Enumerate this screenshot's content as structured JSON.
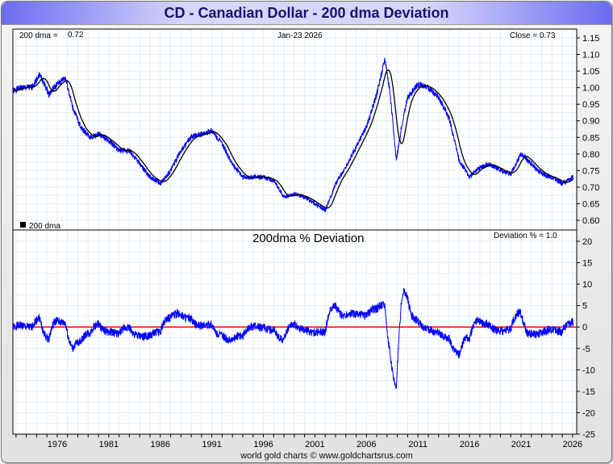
{
  "title": "CD  -  Canadian Dollar - 200 dma Deviation",
  "footer": "world gold charts © www.goldchartsrus.com",
  "chart_data": [
    {
      "type": "line",
      "title": "",
      "labels": {
        "dma_label": "200 dma =",
        "dma_value": "0.72",
        "date": "Jan-23  2026",
        "close": "Close = 0.73",
        "legend": "200 dma"
      },
      "ylim": [
        0.6,
        1.15
      ],
      "yticks": [
        "1.15",
        "1.10",
        "1.05",
        "1.00",
        "0.95",
        "0.90",
        "0.85",
        "0.80",
        "0.75",
        "0.70",
        "0.65",
        "0.60"
      ],
      "x": [
        1971.7,
        1972.5,
        1973.5,
        1974.3,
        1975.2,
        1976.0,
        1976.8,
        1977.5,
        1978.3,
        1979.2,
        1980,
        1981,
        1982,
        1983,
        1984,
        1985,
        1986,
        1987,
        1988,
        1989,
        1990,
        1991,
        1992,
        1993,
        1994,
        1995,
        1996,
        1997,
        1998,
        1999,
        2000,
        2001,
        2002,
        2003,
        2004,
        2005,
        2006,
        2007,
        2007.8,
        2008.3,
        2008.9,
        2009.5,
        2010,
        2011,
        2012,
        2013,
        2014,
        2015,
        2016,
        2017,
        2018,
        2019,
        2020,
        2021,
        2022,
        2023,
        2024,
        2025,
        2026.06
      ],
      "series": [
        {
          "name": "Close",
          "color": "#0000ff",
          "values": [
            0.99,
            1.0,
            1.0,
            1.04,
            0.98,
            1.01,
            1.03,
            0.94,
            0.88,
            0.85,
            0.86,
            0.84,
            0.81,
            0.81,
            0.77,
            0.73,
            0.71,
            0.75,
            0.81,
            0.85,
            0.86,
            0.87,
            0.83,
            0.77,
            0.73,
            0.73,
            0.73,
            0.72,
            0.67,
            0.68,
            0.67,
            0.65,
            0.63,
            0.71,
            0.76,
            0.82,
            0.88,
            0.98,
            1.09,
            0.98,
            0.78,
            0.9,
            0.97,
            1.01,
            1.0,
            0.97,
            0.91,
            0.78,
            0.73,
            0.76,
            0.77,
            0.75,
            0.74,
            0.8,
            0.77,
            0.74,
            0.73,
            0.71,
            0.73
          ]
        }
      ]
    },
    {
      "type": "line",
      "title": "200dma  %  Deviation",
      "labels": {
        "deviation_note": "Deviation % = 1.0"
      },
      "ylim": [
        -25,
        20
      ],
      "yticks": [
        "20",
        "15",
        "10",
        "5",
        "0",
        "-5",
        "-10",
        "-15",
        "-20",
        "-25"
      ],
      "xticks": [
        "1976",
        "1981",
        "1986",
        "1991",
        "1996",
        "2001",
        "2006",
        "2011",
        "2016",
        "2021",
        "2026"
      ],
      "zero_line_color": "#ff0000",
      "series_color": "#0000ff"
    }
  ]
}
